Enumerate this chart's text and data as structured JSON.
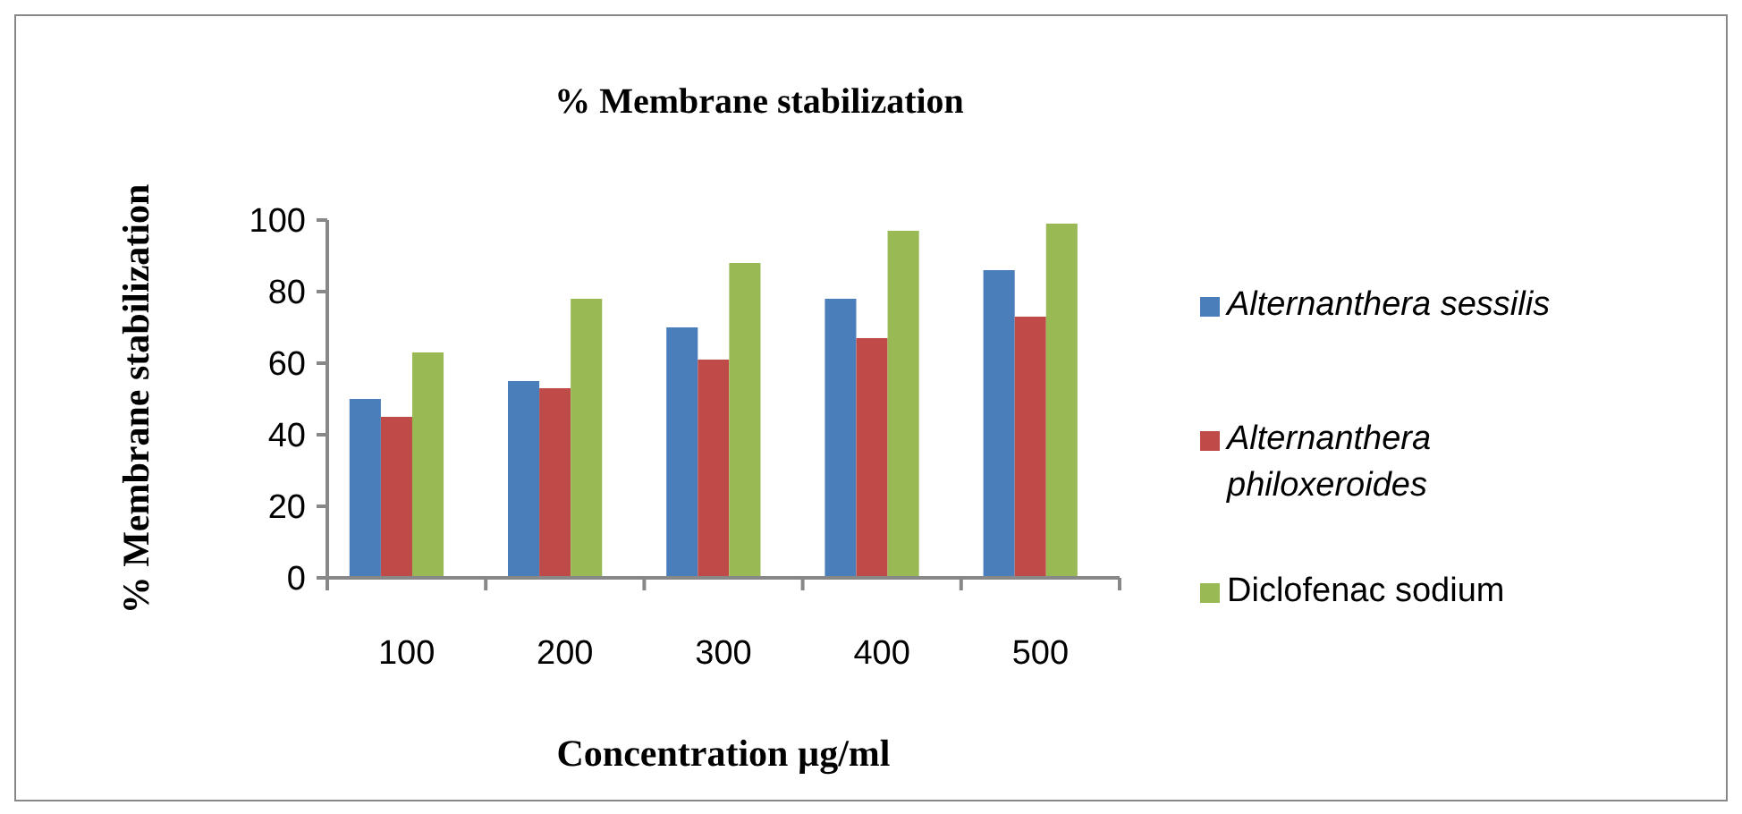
{
  "chart_data": {
    "type": "bar",
    "title": "% Membrane stabilization",
    "xlabel": "Concentration µg/ml",
    "ylabel": "% Membrane stabilization",
    "categories": [
      "100",
      "200",
      "300",
      "400",
      "500"
    ],
    "series": [
      {
        "name": "Alternanthera sessilis",
        "color": "#4a7ebb",
        "values": [
          50,
          55,
          70,
          78,
          86
        ]
      },
      {
        "name": "Alternanthera philoxeroides",
        "color": "#be4b48",
        "values": [
          45,
          53,
          61,
          67,
          73
        ]
      },
      {
        "name": "Diclofenac sodium",
        "color": "#98b954",
        "values": [
          63,
          78,
          88,
          97,
          99
        ]
      }
    ],
    "ylim": [
      0,
      100
    ],
    "yticks": [
      0,
      20,
      40,
      60,
      80,
      100
    ],
    "grid": false,
    "legend": "right"
  }
}
